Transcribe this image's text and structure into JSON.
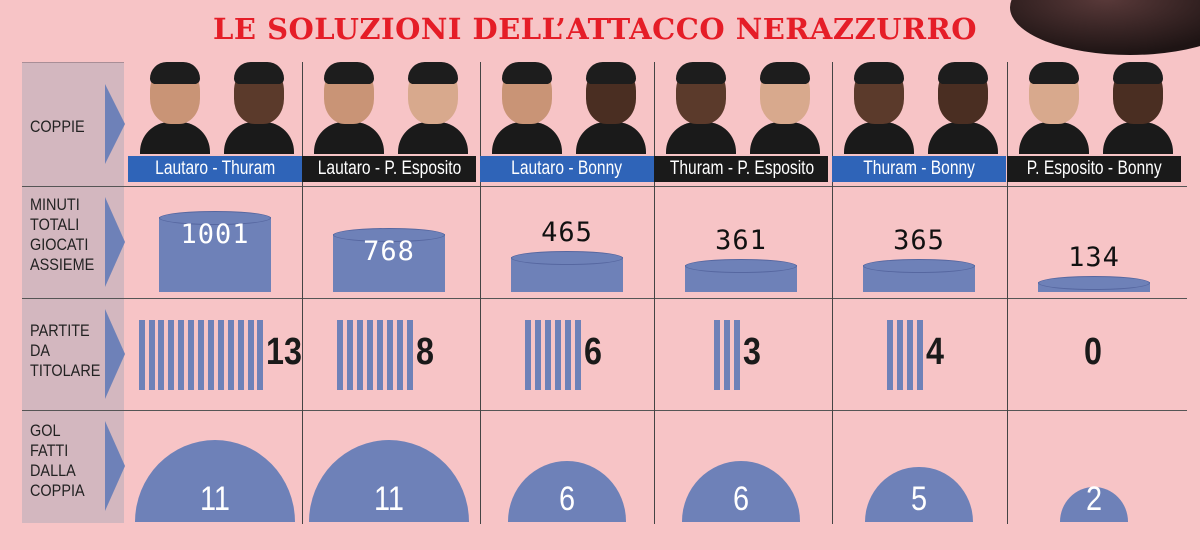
{
  "title": "LE SOLUZIONI DELL’ATTACCO NERAZZURRO",
  "row_labels": {
    "coppie": "COPPIE",
    "minuti": "MINUTI\nTOTALI\nGIOCATI\nASSIEME",
    "partite": "PARTITE\nDA\nTITOLARE",
    "gol": "GOL\nFATTI\nDALLA\nCOPPIA"
  },
  "colors": {
    "title": "#e51d27",
    "bar": "#6e81b8",
    "background": "#f7c4c6",
    "name_bar_blue": "#2f64b8",
    "name_bar_black": "#1a1a1a"
  },
  "chart_data": {
    "type": "table",
    "pairs": [
      {
        "name": "Lautaro - Thuram",
        "name_bar": "blue",
        "minutes": "1001",
        "starts": "13",
        "goals": "11"
      },
      {
        "name": "Lautaro - P. Esposito",
        "name_bar": "black",
        "minutes": "768",
        "starts": "8",
        "goals": "11"
      },
      {
        "name": "Lautaro - Bonny",
        "name_bar": "blue",
        "minutes": "465",
        "starts": "6",
        "goals": "6"
      },
      {
        "name": "Thuram - P. Esposito",
        "name_bar": "black",
        "minutes": "361",
        "starts": "3",
        "goals": "6"
      },
      {
        "name": "Thuram - Bonny",
        "name_bar": "blue",
        "minutes": "365",
        "starts": "4",
        "goals": "5"
      },
      {
        "name": "P. Esposito - Bonny",
        "name_bar": "black",
        "minutes": "134",
        "starts": "0",
        "goals": "2"
      }
    ]
  }
}
